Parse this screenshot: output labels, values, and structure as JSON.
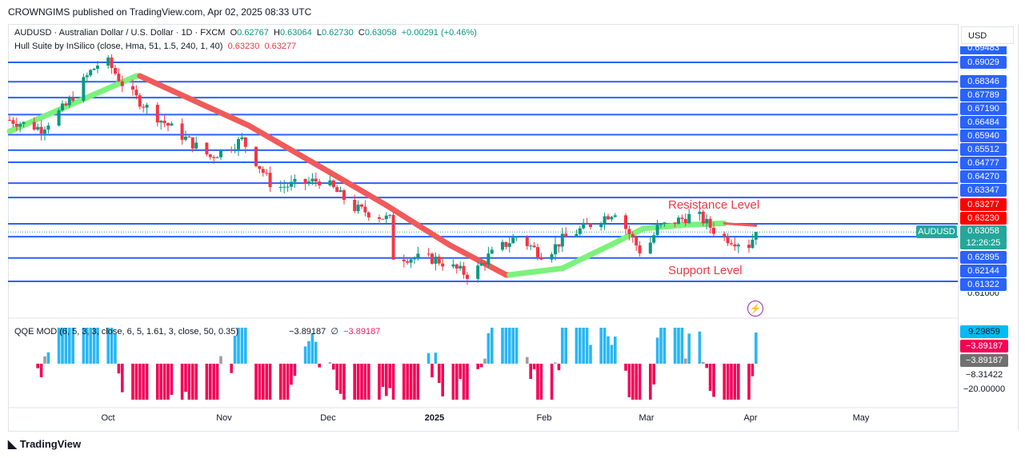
{
  "publisher": "CROWNGIMS published on TradingView.com, Apr 02, 2025 08:33 UTC",
  "symbol_line": {
    "title": "AUDUSD · Australian Dollar / U.S. Dollar · 1D · FXCM",
    "o_label": "O",
    "o": "0.62767",
    "h_label": "H",
    "h": "0.63064",
    "l_label": "L",
    "l": "0.62730",
    "c_label": "C",
    "c": "0.63058",
    "change": "+0.00291 (+0.46%)"
  },
  "hull_line": {
    "title": "Hull Suite by InSilico (close, Hma, 51, 1.5, 240, 1, 40)",
    "v1": "0.63230",
    "v2": "0.63277"
  },
  "qqe_line": {
    "title": "QQE MOD (6, 5, 3, 3, close, 6, 5, 1.61, 3, close, 50, 0.35)",
    "v1": "−3.89187",
    "sym": "∅",
    "v2": "−3.89187"
  },
  "currency": "USD",
  "levels": [
    "0.69029",
    "0.68346",
    "0.67789",
    "0.67190",
    "0.66484",
    "0.65940",
    "0.65512",
    "0.64777",
    "0.64270",
    "0.63347",
    "0.62895",
    "0.62144",
    "0.61322"
  ],
  "partial_labels": {
    "top": "0.69483",
    "bottom": "0.61000"
  },
  "hull_labels": {
    "upper": "0.63277",
    "lower": "0.63230"
  },
  "price_tag": {
    "symbol": "AUDUSD",
    "price": "0.63058",
    "countdown": "12:26:25"
  },
  "annotations": {
    "resistance": "Resistance Level",
    "support": "Support Level"
  },
  "qqe_axis": {
    "v1": "9.29859",
    "v2": "−3.89187",
    "v3": "−3.89187",
    "v4": "−8.31422",
    "v5": "−20.00000"
  },
  "x_axis": [
    "Oct",
    "Nov",
    "Dec",
    "2025",
    "Feb",
    "Mar",
    "Apr",
    "May"
  ],
  "brand": "TradingView",
  "colors": {
    "level": "#2962ff",
    "up": "#089981",
    "down": "#f23645",
    "hull_up": "#7cf27c",
    "hull_down": "#f05a5a"
  },
  "chart_data": {
    "type": "candlestick",
    "price_keypoints": [
      [
        0,
        0.67
      ],
      [
        9,
        0.667
      ],
      [
        16,
        0.675
      ],
      [
        23,
        0.687
      ],
      [
        27,
        0.692
      ],
      [
        33,
        0.681
      ],
      [
        43,
        0.67
      ],
      [
        57,
        0.657
      ],
      [
        66,
        0.663
      ],
      [
        75,
        0.646
      ],
      [
        89,
        0.649
      ],
      [
        98,
        0.639
      ],
      [
        108,
        0.635
      ],
      [
        109,
        0.622
      ],
      [
        121,
        0.621
      ],
      [
        131,
        0.615
      ],
      [
        136,
        0.622
      ],
      [
        144,
        0.629
      ],
      [
        152,
        0.622
      ],
      [
        157,
        0.628
      ],
      [
        166,
        0.634
      ],
      [
        172,
        0.638
      ],
      [
        180,
        0.622
      ],
      [
        184,
        0.632
      ],
      [
        195,
        0.637
      ],
      [
        202,
        0.629
      ],
      [
        210,
        0.626
      ],
      [
        212,
        0.63058
      ]
    ],
    "hull_keypoints": [
      [
        0,
        0.666,
        1
      ],
      [
        36,
        0.6855,
        1
      ],
      [
        37,
        0.6855,
        0
      ],
      [
        68,
        0.668,
        0
      ],
      [
        89,
        0.653,
        0
      ],
      [
        107,
        0.64,
        0
      ],
      [
        125,
        0.626,
        0
      ],
      [
        141,
        0.6155,
        0
      ],
      [
        142,
        0.6155,
        1
      ],
      [
        157,
        0.6178,
        1
      ],
      [
        171,
        0.6262,
        1
      ],
      [
        180,
        0.6318,
        1
      ],
      [
        191,
        0.633,
        1
      ],
      [
        202,
        0.6336,
        1
      ],
      [
        203,
        0.6336,
        0
      ],
      [
        212,
        0.6328,
        0
      ]
    ],
    "ylim": [
      0.6085,
      0.6955
    ]
  }
}
